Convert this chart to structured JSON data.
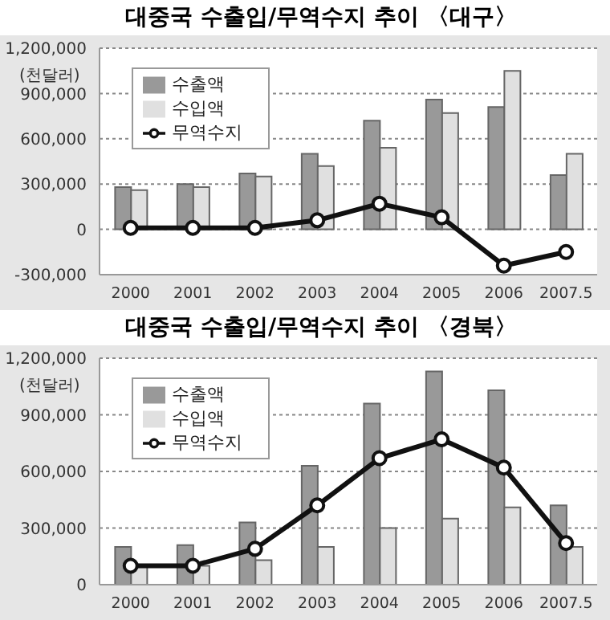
{
  "chart_data": [
    {
      "type": "bar",
      "title": "대중국 수출입/무역수지 추이 〈대구〉",
      "ylabel": "(천달러)",
      "categories": [
        "2000",
        "2001",
        "2002",
        "2003",
        "2004",
        "2005",
        "2006",
        "2007.5"
      ],
      "series": [
        {
          "name": "수출액",
          "color": "#999999",
          "values": [
            280000,
            300000,
            370000,
            500000,
            720000,
            860000,
            810000,
            360000
          ]
        },
        {
          "name": "수입액",
          "color": "#e0e0e0",
          "values": [
            260000,
            280000,
            350000,
            420000,
            540000,
            770000,
            1050000,
            500000
          ]
        },
        {
          "name": "무역수지",
          "type": "line",
          "color": "#111111",
          "values": [
            10000,
            10000,
            10000,
            60000,
            170000,
            80000,
            -240000,
            -150000
          ]
        }
      ],
      "ylim": [
        -300000,
        1200000
      ],
      "yticks": [
        {
          "value": -300000,
          "label": "-300,000"
        },
        0,
        {
          "value": 300000,
          "label": "300,000"
        },
        {
          "value": 600000,
          "label": "600,000"
        },
        {
          "value": 900000,
          "label": "900,000"
        },
        {
          "value": 1200000,
          "label": "1,200,000"
        }
      ],
      "grid": "y",
      "legend": "top left",
      "marker": "circle"
    },
    {
      "type": "bar",
      "title": "대중국 수출입/무역수지 추이 〈경북〉",
      "ylabel": "(천달러)",
      "categories": [
        "2000",
        "2001",
        "2002",
        "2003",
        "2004",
        "2005",
        "2006",
        "2007.5"
      ],
      "series": [
        {
          "name": "수출액",
          "color": "#999999",
          "values": [
            200000,
            210000,
            330000,
            630000,
            960000,
            1130000,
            1030000,
            420000
          ]
        },
        {
          "name": "수입액",
          "color": "#e0e0e0",
          "values": [
            100000,
            100000,
            130000,
            200000,
            300000,
            350000,
            410000,
            200000
          ]
        },
        {
          "name": "무역수지",
          "type": "line",
          "color": "#111111",
          "values": [
            100000,
            100000,
            190000,
            420000,
            670000,
            770000,
            620000,
            220000
          ]
        }
      ],
      "ylim": [
        0,
        1200000
      ],
      "yticks": [
        0,
        {
          "value": 300000,
          "label": "300,000"
        },
        {
          "value": 600000,
          "label": "600,000"
        },
        {
          "value": 900000,
          "label": "900,000"
        },
        {
          "value": 1200000,
          "label": "1,200,000"
        }
      ],
      "grid": "y",
      "legend": "top left",
      "marker": "circle"
    }
  ]
}
